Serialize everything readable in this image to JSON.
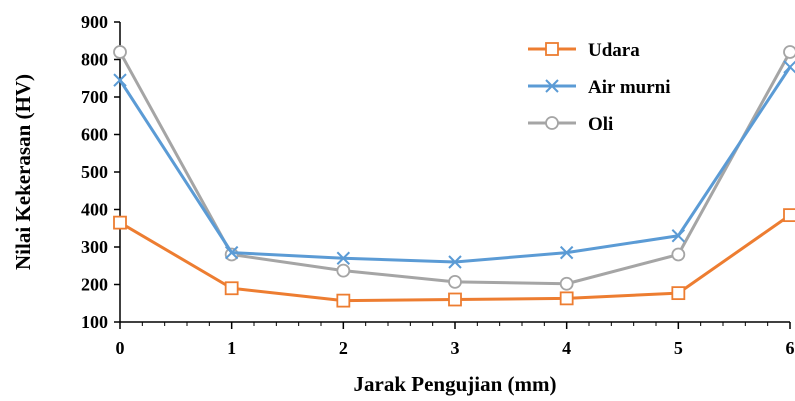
{
  "chart_data": {
    "type": "line",
    "xlabel": "Jarak Pengujian (mm)",
    "ylabel": "Nilai Kekerasan (HV)",
    "xlim": [
      0,
      6
    ],
    "ylim": [
      100,
      900
    ],
    "x_ticks": [
      "0",
      "1",
      "2",
      "3",
      "4",
      "5",
      "6"
    ],
    "y_ticks": [
      "100",
      "200",
      "300",
      "400",
      "500",
      "600",
      "700",
      "800",
      "900"
    ],
    "x": [
      0,
      1,
      2,
      3,
      4,
      5,
      6
    ],
    "grid": false,
    "legend_position": "top-right",
    "series": [
      {
        "name": "Udara",
        "color": "#ED7D31",
        "marker": "square",
        "values": [
          365,
          190,
          157,
          160,
          163,
          177,
          385
        ]
      },
      {
        "name": "Air murni",
        "color": "#5B9BD5",
        "marker": "x",
        "values": [
          745,
          285,
          270,
          260,
          285,
          330,
          780
        ]
      },
      {
        "name": "Oli",
        "color": "#A5A5A5",
        "marker": "circle",
        "values": [
          820,
          280,
          237,
          207,
          202,
          280,
          820
        ]
      }
    ]
  }
}
